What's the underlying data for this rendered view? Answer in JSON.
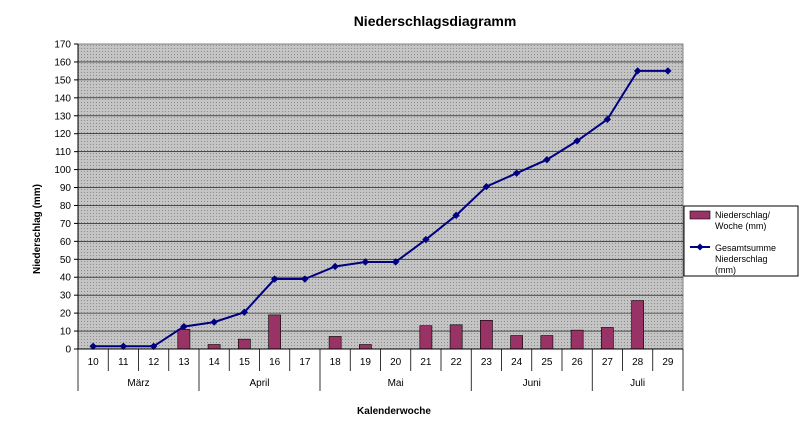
{
  "chart_data": {
    "type": "bar+line",
    "title": "Niederschlagsdiagramm",
    "xlabel": "Kalenderwoche",
    "ylabel": "Niederschlag (mm)",
    "ylim": [
      0,
      170
    ],
    "yticks": [
      0,
      10,
      20,
      30,
      40,
      50,
      60,
      70,
      80,
      90,
      100,
      110,
      120,
      130,
      140,
      150,
      160,
      170
    ],
    "grid": true,
    "legend_position": "right",
    "categories": [
      "10",
      "11",
      "12",
      "13",
      "14",
      "15",
      "16",
      "17",
      "18",
      "19",
      "20",
      "21",
      "22",
      "23",
      "24",
      "25",
      "26",
      "27",
      "28",
      "29"
    ],
    "months": [
      {
        "label": "März",
        "start": 0,
        "end": 3
      },
      {
        "label": "April",
        "start": 4,
        "end": 7
      },
      {
        "label": "Mai",
        "start": 8,
        "end": 12
      },
      {
        "label": "Juni",
        "start": 13,
        "end": 16
      },
      {
        "label": "Juli",
        "start": 17,
        "end": 19
      }
    ],
    "series": [
      {
        "name": "Niederschlag/ Woche (mm)",
        "type": "bar",
        "color": "#993366",
        "values": [
          0,
          0,
          0,
          11,
          2.5,
          5.5,
          19,
          0,
          7,
          2.5,
          0,
          13,
          13.5,
          16,
          7.5,
          7.5,
          10.5,
          12,
          27,
          0
        ]
      },
      {
        "name": "Gesamtsumme Niederschlag (mm)",
        "type": "line",
        "color": "#000080",
        "values": [
          1.5,
          1.5,
          1.5,
          12.5,
          15,
          20.5,
          39,
          39,
          46,
          48.5,
          48.5,
          61,
          74.5,
          90.5,
          98,
          105.5,
          116,
          128,
          155,
          155
        ]
      }
    ]
  }
}
